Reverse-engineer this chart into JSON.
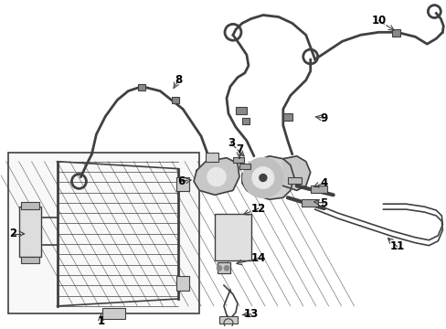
{
  "background_color": "#ffffff",
  "line_color": "#404040",
  "text_color": "#000000",
  "fig_width": 4.89,
  "fig_height": 3.6,
  "dpi": 100,
  "xlim": [
    0,
    489
  ],
  "ylim": [
    360,
    0
  ]
}
